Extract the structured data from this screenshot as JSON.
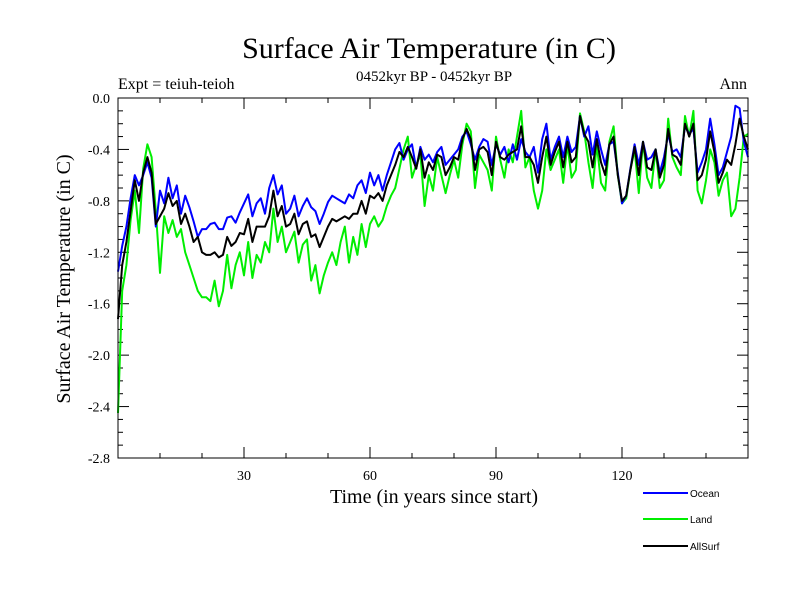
{
  "header": {
    "title": "Surface Air Temperature (in C)",
    "subtitle": "0452kyr BP - 0452kyr BP",
    "expt": "Expt = teiuh-teioh",
    "season": "Ann"
  },
  "chart_data": {
    "type": "line",
    "title": "Surface Air Temperature (in C)",
    "xlabel": "Time (in years since start)",
    "ylabel": "Surface Air Temperature (in C)",
    "xlim": [
      0,
      150
    ],
    "ylim": [
      -2.8,
      0.0
    ],
    "xticks": [
      30,
      60,
      90,
      120
    ],
    "yticks": [
      0.0,
      -0.4,
      -0.8,
      -1.2,
      -1.6,
      -2.0,
      -2.4,
      -2.8
    ],
    "ytick_labels": [
      "0.0",
      "-0.4",
      "-0.8",
      "-1.2",
      "-1.6",
      "-2.0",
      "-2.4",
      "-2.8"
    ],
    "legend_position": "bottom-right outside",
    "x": [
      0,
      1,
      2,
      3,
      4,
      5,
      6,
      7,
      8,
      9,
      10,
      11,
      12,
      13,
      14,
      15,
      16,
      17,
      18,
      19,
      20,
      21,
      22,
      23,
      24,
      25,
      26,
      27,
      28,
      29,
      30,
      31,
      32,
      33,
      34,
      35,
      36,
      37,
      38,
      39,
      40,
      41,
      42,
      43,
      44,
      45,
      46,
      47,
      48,
      49,
      50,
      51,
      52,
      53,
      54,
      55,
      56,
      57,
      58,
      59,
      60,
      61,
      62,
      63,
      64,
      65,
      66,
      67,
      68,
      69,
      70,
      71,
      72,
      73,
      74,
      75,
      76,
      77,
      78,
      79,
      80,
      81,
      82,
      83,
      84,
      85,
      86,
      87,
      88,
      89,
      90,
      91,
      92,
      93,
      94,
      95,
      96,
      97,
      98,
      99,
      100,
      101,
      102,
      103,
      104,
      105,
      106,
      107,
      108,
      109,
      110,
      111,
      112,
      113,
      114,
      115,
      116,
      117,
      118,
      119,
      120,
      121,
      122,
      123,
      124,
      125,
      126,
      127,
      128,
      129,
      130,
      131,
      132,
      133,
      134,
      135,
      136,
      137,
      138,
      139,
      140,
      141,
      142,
      143,
      144,
      145,
      146,
      147,
      148,
      149,
      150
    ],
    "series": [
      {
        "name": "Ocean",
        "color": "#0000ff",
        "values": [
          -1.35,
          -1.15,
          -1.0,
          -0.78,
          -0.6,
          -0.68,
          -0.6,
          -0.5,
          -0.62,
          -1.0,
          -0.72,
          -0.82,
          -0.62,
          -0.78,
          -0.68,
          -0.9,
          -0.76,
          -0.85,
          -0.96,
          -1.08,
          -1.02,
          -1.02,
          -0.98,
          -0.97,
          -1.02,
          -1.02,
          -0.93,
          -0.92,
          -0.97,
          -0.89,
          -0.82,
          -0.75,
          -0.92,
          -0.82,
          -0.78,
          -0.9,
          -0.7,
          -0.6,
          -0.75,
          -0.68,
          -0.9,
          -0.86,
          -0.76,
          -0.92,
          -0.84,
          -0.78,
          -0.85,
          -0.88,
          -0.98,
          -0.9,
          -0.81,
          -0.76,
          -0.78,
          -0.8,
          -0.82,
          -0.75,
          -0.78,
          -0.68,
          -0.64,
          -0.74,
          -0.58,
          -0.68,
          -0.6,
          -0.72,
          -0.6,
          -0.5,
          -0.4,
          -0.35,
          -0.48,
          -0.4,
          -0.36,
          -0.55,
          -0.38,
          -0.48,
          -0.44,
          -0.5,
          -0.42,
          -0.38,
          -0.52,
          -0.48,
          -0.44,
          -0.4,
          -0.3,
          -0.26,
          -0.36,
          -0.48,
          -0.38,
          -0.32,
          -0.34,
          -0.52,
          -0.36,
          -0.44,
          -0.38,
          -0.5,
          -0.36,
          -0.48,
          -0.32,
          -0.42,
          -0.46,
          -0.38,
          -0.58,
          -0.32,
          -0.2,
          -0.48,
          -0.38,
          -0.3,
          -0.46,
          -0.3,
          -0.42,
          -0.38,
          -0.14,
          -0.3,
          -0.22,
          -0.44,
          -0.26,
          -0.4,
          -0.52,
          -0.36,
          -0.34,
          -0.58,
          -0.82,
          -0.76,
          -0.55,
          -0.36,
          -0.52,
          -0.34,
          -0.48,
          -0.46,
          -0.4,
          -0.58,
          -0.46,
          -0.28,
          -0.42,
          -0.4,
          -0.46,
          -0.22,
          -0.28,
          -0.24,
          -0.58,
          -0.5,
          -0.4,
          -0.16,
          -0.36,
          -0.6,
          -0.54,
          -0.42,
          -0.3,
          -0.06,
          -0.08,
          -0.34,
          -0.46
        ]
      },
      {
        "name": "Land",
        "color": "#00ee00",
        "values": [
          -2.45,
          -1.5,
          -1.3,
          -0.95,
          -0.72,
          -1.05,
          -0.55,
          -0.36,
          -0.46,
          -0.88,
          -1.36,
          -0.92,
          -1.05,
          -0.95,
          -1.08,
          -1.02,
          -1.2,
          -1.3,
          -1.4,
          -1.5,
          -1.55,
          -1.55,
          -1.58,
          -1.42,
          -1.62,
          -1.5,
          -1.22,
          -1.48,
          -1.3,
          -1.2,
          -1.38,
          -1.12,
          -1.4,
          -1.22,
          -1.28,
          -1.12,
          -1.2,
          -0.86,
          -1.12,
          -1.0,
          -1.2,
          -1.12,
          -1.04,
          -1.28,
          -1.14,
          -1.1,
          -1.42,
          -1.3,
          -1.52,
          -1.38,
          -1.28,
          -1.2,
          -1.3,
          -1.12,
          -1.0,
          -1.28,
          -1.08,
          -1.22,
          -0.98,
          -1.16,
          -0.98,
          -0.92,
          -1.0,
          -0.95,
          -0.84,
          -0.76,
          -0.7,
          -0.55,
          -0.4,
          -0.3,
          -0.62,
          -0.52,
          -0.44,
          -0.84,
          -0.6,
          -0.72,
          -0.46,
          -0.6,
          -0.74,
          -0.6,
          -0.48,
          -0.62,
          -0.36,
          -0.2,
          -0.26,
          -0.7,
          -0.44,
          -0.5,
          -0.56,
          -0.72,
          -0.3,
          -0.48,
          -0.62,
          -0.4,
          -0.5,
          -0.3,
          -0.1,
          -0.54,
          -0.46,
          -0.72,
          -0.86,
          -0.72,
          -0.4,
          -0.56,
          -0.48,
          -0.4,
          -0.66,
          -0.36,
          -0.62,
          -0.56,
          -0.12,
          -0.26,
          -0.5,
          -0.7,
          -0.36,
          -0.66,
          -0.72,
          -0.34,
          -0.22,
          -0.6,
          -0.82,
          -0.78,
          -0.56,
          -0.4,
          -0.74,
          -0.34,
          -0.62,
          -0.7,
          -0.4,
          -0.7,
          -0.64,
          -0.16,
          -0.46,
          -0.54,
          -0.6,
          -0.14,
          -0.3,
          -0.1,
          -0.72,
          -0.82,
          -0.64,
          -0.4,
          -0.5,
          -0.76,
          -0.64,
          -0.58,
          -0.92,
          -0.86,
          -0.62,
          -0.3,
          -0.28
        ]
      },
      {
        "name": "AllSurf",
        "color": "#000000",
        "values": [
          -1.72,
          -1.3,
          -1.12,
          -0.88,
          -0.64,
          -0.8,
          -0.58,
          -0.46,
          -0.58,
          -0.98,
          -0.92,
          -0.86,
          -0.74,
          -0.84,
          -0.8,
          -0.98,
          -0.9,
          -1.0,
          -1.12,
          -1.08,
          -1.2,
          -1.22,
          -1.22,
          -1.2,
          -1.24,
          -1.22,
          -1.08,
          -1.15,
          -1.12,
          -1.05,
          -1.06,
          -0.94,
          -1.12,
          -1.0,
          -1.0,
          -1.0,
          -0.92,
          -0.72,
          -0.92,
          -0.84,
          -1.0,
          -0.98,
          -0.9,
          -1.06,
          -0.98,
          -0.96,
          -1.08,
          -1.06,
          -1.16,
          -1.08,
          -1.0,
          -0.94,
          -0.96,
          -0.94,
          -0.92,
          -0.94,
          -0.9,
          -0.9,
          -0.8,
          -0.9,
          -0.76,
          -0.78,
          -0.74,
          -0.8,
          -0.68,
          -0.6,
          -0.52,
          -0.42,
          -0.46,
          -0.38,
          -0.46,
          -0.55,
          -0.4,
          -0.62,
          -0.5,
          -0.56,
          -0.44,
          -0.46,
          -0.6,
          -0.54,
          -0.46,
          -0.48,
          -0.32,
          -0.24,
          -0.32,
          -0.56,
          -0.4,
          -0.38,
          -0.42,
          -0.6,
          -0.34,
          -0.46,
          -0.48,
          -0.44,
          -0.42,
          -0.4,
          -0.22,
          -0.46,
          -0.46,
          -0.52,
          -0.66,
          -0.46,
          -0.3,
          -0.52,
          -0.42,
          -0.34,
          -0.54,
          -0.34,
          -0.5,
          -0.46,
          -0.14,
          -0.28,
          -0.34,
          -0.54,
          -0.32,
          -0.5,
          -0.6,
          -0.36,
          -0.3,
          -0.6,
          -0.8,
          -0.76,
          -0.56,
          -0.38,
          -0.6,
          -0.34,
          -0.54,
          -0.56,
          -0.4,
          -0.62,
          -0.52,
          -0.24,
          -0.44,
          -0.46,
          -0.52,
          -0.2,
          -0.3,
          -0.2,
          -0.64,
          -0.6,
          -0.48,
          -0.26,
          -0.42,
          -0.66,
          -0.58,
          -0.48,
          -0.52,
          -0.36,
          -0.16,
          -0.3,
          -0.4
        ]
      }
    ]
  }
}
